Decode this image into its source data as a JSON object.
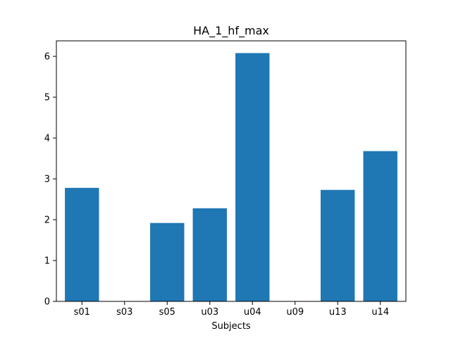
{
  "chart_data": {
    "type": "bar",
    "title": "HA_1_hf_max",
    "xlabel": "Subjects",
    "ylabel": "",
    "categories": [
      "s01",
      "s03",
      "s05",
      "u03",
      "u04",
      "u09",
      "u13",
      "u14"
    ],
    "values": [
      2.78,
      0,
      1.92,
      2.28,
      6.08,
      0,
      2.73,
      3.68
    ],
    "ylim": [
      0,
      6.38
    ],
    "yticks": [
      0,
      1,
      2,
      3,
      4,
      5,
      6
    ],
    "bar_color": "#1f77b4",
    "grid": false,
    "legend": "none"
  }
}
